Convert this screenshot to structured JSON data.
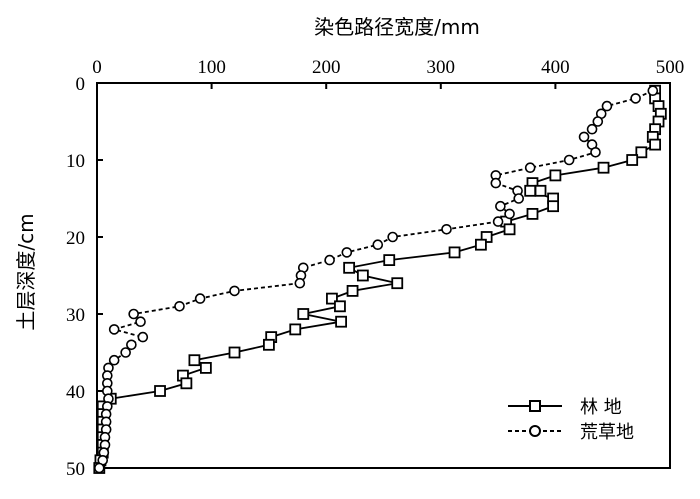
{
  "chart_data": {
    "type": "line",
    "xlabel": "染色路径宽度/mm",
    "ylabel": "土层深度/cm",
    "xlim": [
      0,
      500
    ],
    "ylim": [
      0,
      50
    ],
    "y_inverted": true,
    "x_axis_position": "top",
    "x_ticks": [
      "0",
      "100",
      "200",
      "300",
      "400",
      "500"
    ],
    "y_ticks": [
      "0",
      "10",
      "20",
      "30",
      "40",
      "50"
    ],
    "grid": false,
    "legend_position": "bottom-right",
    "series": [
      {
        "name": "林 地",
        "style": "solid",
        "marker": "square",
        "color": "#000000",
        "points": [
          [
            487,
            1
          ],
          [
            487,
            2
          ],
          [
            490,
            3
          ],
          [
            492,
            4
          ],
          [
            490,
            5
          ],
          [
            487,
            6
          ],
          [
            485,
            7
          ],
          [
            487,
            8
          ],
          [
            475,
            9
          ],
          [
            467,
            10
          ],
          [
            442,
            11
          ],
          [
            400,
            12
          ],
          [
            380,
            13
          ],
          [
            387,
            14
          ],
          [
            378,
            14
          ],
          [
            398,
            15
          ],
          [
            398,
            16
          ],
          [
            380,
            17
          ],
          [
            357,
            18
          ],
          [
            360,
            19
          ],
          [
            340,
            20
          ],
          [
            335,
            21
          ],
          [
            312,
            22
          ],
          [
            255,
            23
          ],
          [
            220,
            24
          ],
          [
            232,
            25
          ],
          [
            262,
            26
          ],
          [
            223,
            27
          ],
          [
            205,
            28
          ],
          [
            212,
            29
          ],
          [
            180,
            30
          ],
          [
            213,
            31
          ],
          [
            173,
            32
          ],
          [
            152,
            33
          ],
          [
            150,
            34
          ],
          [
            120,
            35
          ],
          [
            85,
            36
          ],
          [
            95,
            37
          ],
          [
            75,
            38
          ],
          [
            78,
            39
          ],
          [
            55,
            40
          ],
          [
            12,
            41
          ],
          [
            5,
            42
          ],
          [
            5,
            43
          ],
          [
            5,
            44
          ],
          [
            5,
            45
          ],
          [
            5,
            46
          ],
          [
            5,
            47
          ],
          [
            5,
            48
          ],
          [
            3,
            49
          ],
          [
            2,
            50
          ]
        ]
      },
      {
        "name": "荒草地",
        "style": "dashed",
        "marker": "circle",
        "color": "#000000",
        "points": [
          [
            485,
            1
          ],
          [
            470,
            2
          ],
          [
            445,
            3
          ],
          [
            440,
            4
          ],
          [
            437,
            5
          ],
          [
            432,
            6
          ],
          [
            425,
            7
          ],
          [
            432,
            8
          ],
          [
            435,
            9
          ],
          [
            412,
            10
          ],
          [
            378,
            11
          ],
          [
            348,
            12
          ],
          [
            348,
            13
          ],
          [
            367,
            14
          ],
          [
            368,
            15
          ],
          [
            352,
            16
          ],
          [
            360,
            17
          ],
          [
            350,
            18
          ],
          [
            305,
            19
          ],
          [
            258,
            20
          ],
          [
            245,
            21
          ],
          [
            218,
            22
          ],
          [
            203,
            23
          ],
          [
            180,
            24
          ],
          [
            178,
            25
          ],
          [
            177,
            26
          ],
          [
            120,
            27
          ],
          [
            90,
            28
          ],
          [
            72,
            29
          ],
          [
            32,
            30
          ],
          [
            38,
            31
          ],
          [
            15,
            32
          ],
          [
            40,
            33
          ],
          [
            30,
            34
          ],
          [
            25,
            35
          ],
          [
            15,
            36
          ],
          [
            10,
            37
          ],
          [
            9,
            38
          ],
          [
            9,
            39
          ],
          [
            9,
            40
          ],
          [
            10,
            41
          ],
          [
            9,
            42
          ],
          [
            8,
            43
          ],
          [
            8,
            44
          ],
          [
            8,
            45
          ],
          [
            7,
            46
          ],
          [
            7,
            47
          ],
          [
            6,
            48
          ],
          [
            5,
            49
          ],
          [
            2,
            50
          ]
        ]
      }
    ]
  }
}
